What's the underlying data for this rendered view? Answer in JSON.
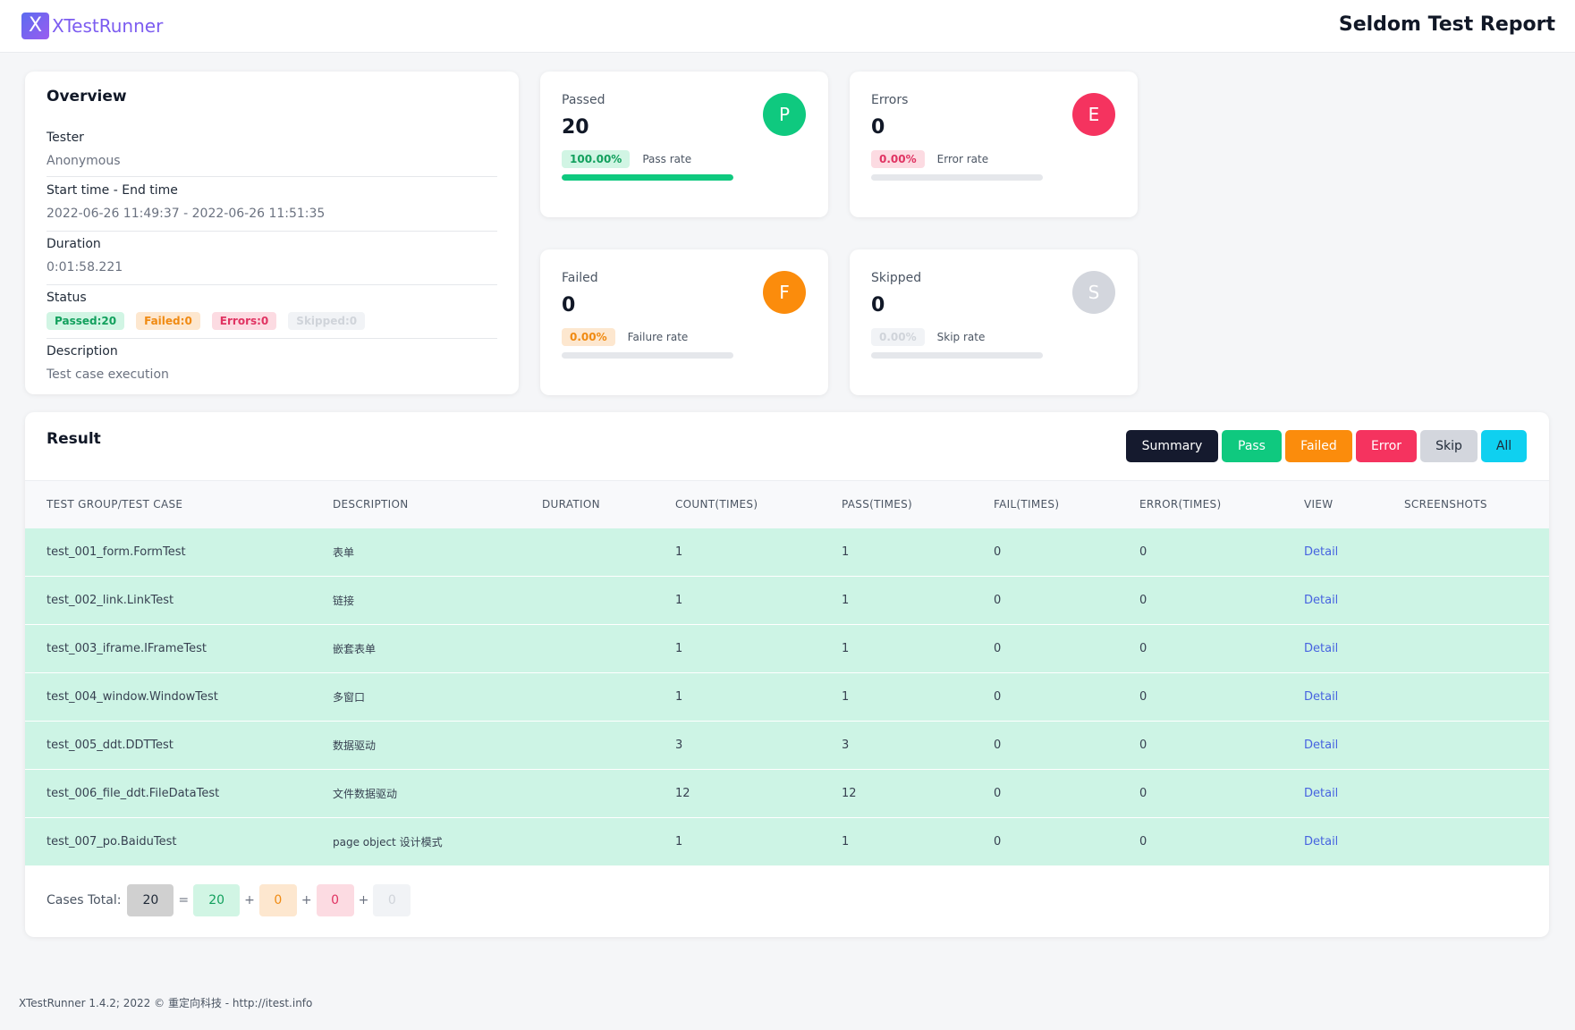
{
  "header": {
    "logo_letter": "X",
    "logo_text": "XTestRunner",
    "report_title": "Seldom Test Report"
  },
  "overview": {
    "title": "Overview",
    "tester_label": "Tester",
    "tester_value": "Anonymous",
    "time_label": "Start time - End time",
    "time_value": "2022-06-26 11:49:37 - 2022-06-26 11:51:35",
    "duration_label": "Duration",
    "duration_value": "0:01:58.221",
    "status_label": "Status",
    "status_passed": "Passed:20",
    "status_failed": "Failed:0",
    "status_errors": "Errors:0",
    "status_skipped": "Skipped:0",
    "description_label": "Description",
    "description_value": "Test case execution"
  },
  "stats": {
    "passed": {
      "label": "Passed",
      "count": "20",
      "icon": "P",
      "rate": "100.00%",
      "rate_label": "Pass rate",
      "fraction": 1.0,
      "color": "#0fc97f"
    },
    "errors": {
      "label": "Errors",
      "count": "0",
      "icon": "E",
      "rate": "0.00%",
      "rate_label": "Error rate",
      "fraction": 0.0,
      "color": "#f5335f"
    },
    "failed": {
      "label": "Failed",
      "count": "0",
      "icon": "F",
      "rate": "0.00%",
      "rate_label": "Failure rate",
      "fraction": 0.0,
      "color": "#fb8c0c"
    },
    "skipped": {
      "label": "Skipped",
      "count": "0",
      "icon": "S",
      "rate": "0.00%",
      "rate_label": "Skip rate",
      "fraction": 0.0,
      "color": "#d3d6dd"
    }
  },
  "result": {
    "title": "Result",
    "filters": {
      "summary": "Summary",
      "pass": "Pass",
      "failed": "Failed",
      "error": "Error",
      "skip": "Skip",
      "all": "All"
    },
    "columns": {
      "group": "TEST GROUP/TEST CASE",
      "description": "DESCRIPTION",
      "duration": "DURATION",
      "count": "COUNT(TIMES)",
      "pass": "PASS(TIMES)",
      "fail": "FAIL(TIMES)",
      "error": "ERROR(TIMES)",
      "view": "VIEW",
      "screenshots": "SCREENSHOTS"
    },
    "rows": [
      {
        "name": "test_001_form.FormTest",
        "description": "表单",
        "duration": "",
        "count": "1",
        "pass": "1",
        "fail": "0",
        "error": "0",
        "view": "Detail",
        "screenshots": ""
      },
      {
        "name": "test_002_link.LinkTest",
        "description": "链接",
        "duration": "",
        "count": "1",
        "pass": "1",
        "fail": "0",
        "error": "0",
        "view": "Detail",
        "screenshots": ""
      },
      {
        "name": "test_003_iframe.IFrameTest",
        "description": "嵌套表单",
        "duration": "",
        "count": "1",
        "pass": "1",
        "fail": "0",
        "error": "0",
        "view": "Detail",
        "screenshots": ""
      },
      {
        "name": "test_004_window.WindowTest",
        "description": "多窗口",
        "duration": "",
        "count": "1",
        "pass": "1",
        "fail": "0",
        "error": "0",
        "view": "Detail",
        "screenshots": ""
      },
      {
        "name": "test_005_ddt.DDTTest",
        "description": "数据驱动",
        "duration": "",
        "count": "3",
        "pass": "3",
        "fail": "0",
        "error": "0",
        "view": "Detail",
        "screenshots": ""
      },
      {
        "name": "test_006_file_ddt.FileDataTest",
        "description": "文件数据驱动",
        "duration": "",
        "count": "12",
        "pass": "12",
        "fail": "0",
        "error": "0",
        "view": "Detail",
        "screenshots": ""
      },
      {
        "name": "test_007_po.BaiduTest",
        "description": "page object 设计模式",
        "duration": "",
        "count": "1",
        "pass": "1",
        "fail": "0",
        "error": "0",
        "view": "Detail",
        "screenshots": ""
      }
    ],
    "totals": {
      "label": "Cases Total:",
      "total": "20",
      "equals": "=",
      "plus": "+",
      "passed": "20",
      "failed": "0",
      "errors": "0",
      "skipped": "0"
    }
  },
  "footer": {
    "text": "XTestRunner 1.4.2; 2022 © 重定向科技 - http://itest.info"
  }
}
